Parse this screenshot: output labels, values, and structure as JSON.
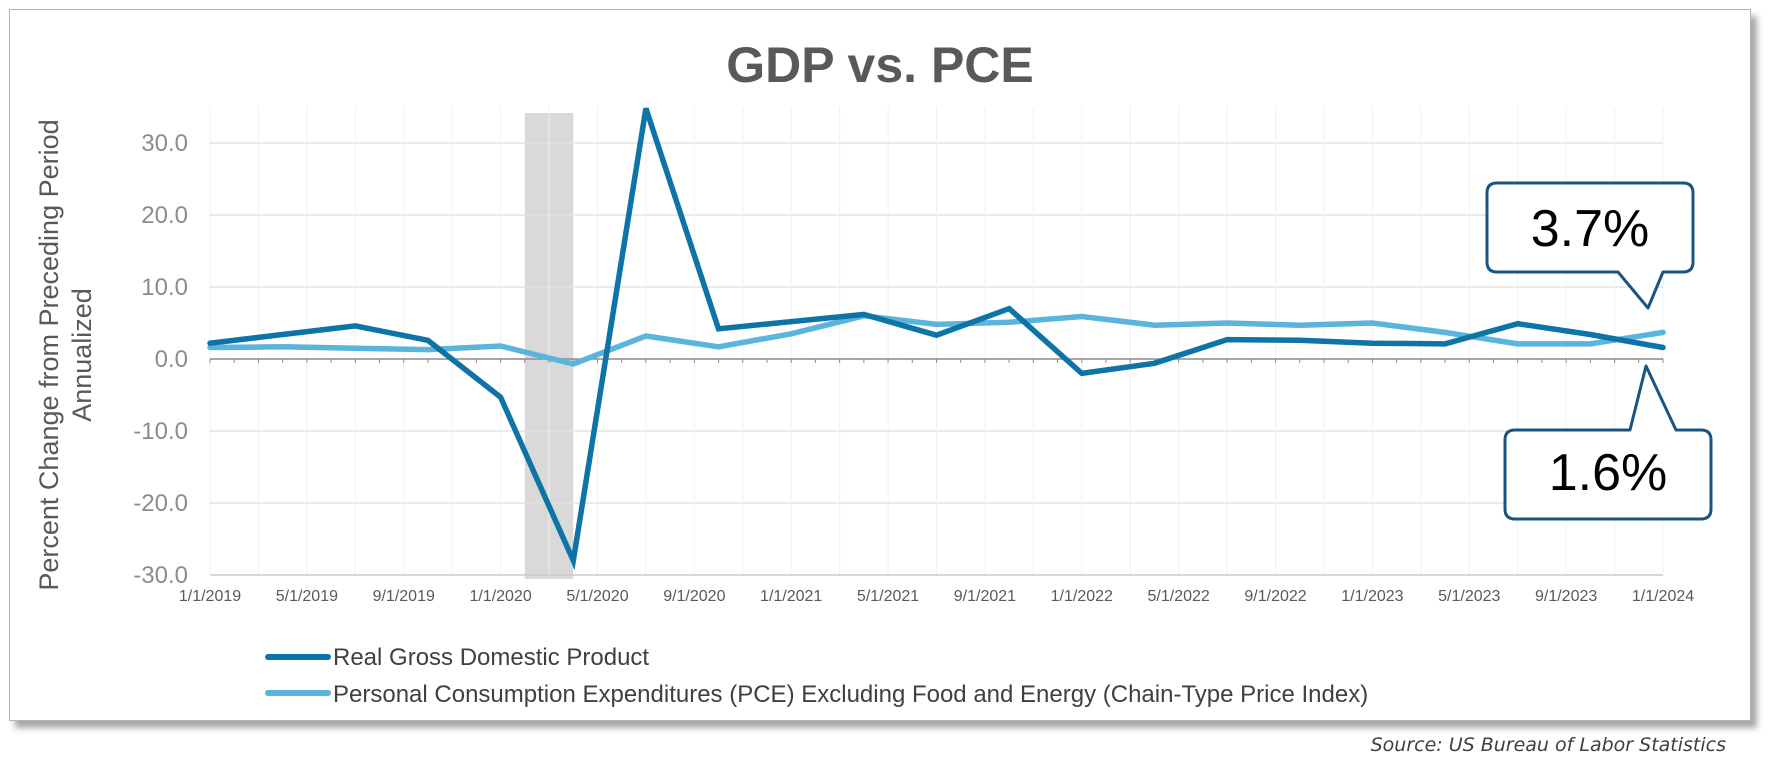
{
  "chart_data": {
    "type": "line",
    "title": "GDP vs. PCE",
    "ylabel_line1": "Percent Change from Preceding Period",
    "ylabel_line2": "Annualized",
    "xlabel": "",
    "ylim": [
      -30,
      35
    ],
    "yticks": [
      -30,
      -20,
      -10,
      0,
      10,
      20,
      30
    ],
    "ytick_labels": [
      "-30.0",
      "-20.0",
      "-10.0",
      "0.0",
      "10.0",
      "20.0",
      "30.0"
    ],
    "x_labels": [
      "1/1/2019",
      "5/1/2019",
      "9/1/2019",
      "1/1/2020",
      "5/1/2020",
      "9/1/2020",
      "1/1/2021",
      "5/1/2021",
      "9/1/2021",
      "1/1/2022",
      "5/1/2022",
      "9/1/2022",
      "1/1/2023",
      "5/1/2023",
      "9/1/2023",
      "1/1/2024"
    ],
    "x_start": "2019-01",
    "x_end": "2024-01",
    "recession": {
      "start": "2020-02",
      "end": "2020-04"
    },
    "series": [
      {
        "name": "Real Gross Domestic Product",
        "color": "#0E74A8",
        "points": [
          [
            "2019-01",
            2.2
          ],
          [
            "2019-04",
            3.4
          ],
          [
            "2019-07",
            4.6
          ],
          [
            "2019-10",
            2.6
          ],
          [
            "2020-01",
            -5.3
          ],
          [
            "2020-04",
            -28.0
          ],
          [
            "2020-07",
            34.8
          ],
          [
            "2020-10",
            4.2
          ],
          [
            "2021-01",
            5.2
          ],
          [
            "2021-04",
            6.2
          ],
          [
            "2021-07",
            3.3
          ],
          [
            "2021-10",
            7.0
          ],
          [
            "2022-01",
            -2.0
          ],
          [
            "2022-04",
            -0.6
          ],
          [
            "2022-07",
            2.7
          ],
          [
            "2022-10",
            2.6
          ],
          [
            "2023-01",
            2.2
          ],
          [
            "2023-04",
            2.1
          ],
          [
            "2023-07",
            4.9
          ],
          [
            "2023-10",
            3.4
          ],
          [
            "2024-01",
            1.6
          ]
        ]
      },
      {
        "name": "Personal Consumption Expenditures (PCE) Excluding Food and Energy (Chain-Type Price Index)",
        "color": "#5BB4DC",
        "points": [
          [
            "2019-01",
            1.6
          ],
          [
            "2019-04",
            1.7
          ],
          [
            "2019-07",
            1.5
          ],
          [
            "2019-10",
            1.3
          ],
          [
            "2020-01",
            1.8
          ],
          [
            "2020-04",
            -0.7
          ],
          [
            "2020-07",
            3.2
          ],
          [
            "2020-10",
            1.7
          ],
          [
            "2021-01",
            3.5
          ],
          [
            "2021-04",
            6.0
          ],
          [
            "2021-07",
            4.8
          ],
          [
            "2021-10",
            5.1
          ],
          [
            "2022-01",
            5.9
          ],
          [
            "2022-04",
            4.7
          ],
          [
            "2022-07",
            5.0
          ],
          [
            "2022-10",
            4.7
          ],
          [
            "2023-01",
            5.0
          ],
          [
            "2023-04",
            3.7
          ],
          [
            "2023-07",
            2.1
          ],
          [
            "2023-10",
            2.1
          ],
          [
            "2024-01",
            3.7
          ]
        ]
      }
    ],
    "callouts": [
      {
        "label": "3.7%",
        "series": 1
      },
      {
        "label": "1.6%",
        "series": 0
      }
    ]
  },
  "source": "Source: US Bureau of Labor Statistics"
}
